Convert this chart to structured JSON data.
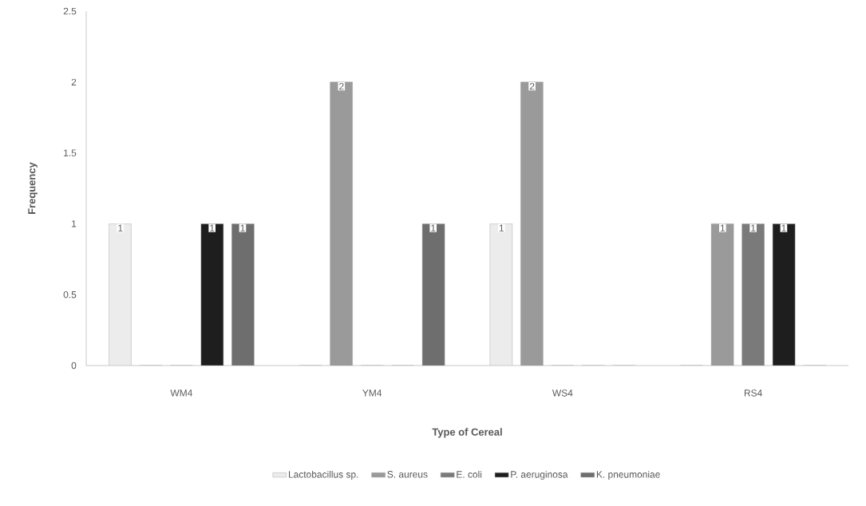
{
  "chart_data": {
    "type": "bar",
    "xlabel": "Type of Cereal",
    "ylabel": "Frequency",
    "categories": [
      "WM4",
      "YM4",
      "WS4",
      "RS4"
    ],
    "series": [
      {
        "name": "Lactobacillus sp.",
        "color": "#ececec",
        "values": [
          1,
          0,
          1,
          0
        ],
        "value_labels": [
          "1",
          null,
          "1",
          null
        ]
      },
      {
        "name": "S. aureus",
        "color": "#9a9a9a",
        "values": [
          0,
          2,
          2,
          1
        ],
        "value_labels": [
          null,
          "2",
          "2",
          "1"
        ]
      },
      {
        "name": "E. coli",
        "color": "#7a7a7a",
        "values": [
          0,
          0,
          0,
          1
        ],
        "value_labels": [
          null,
          null,
          null,
          "1"
        ]
      },
      {
        "name": "P. aeruginosa",
        "color": "#1e1e1e",
        "values": [
          1,
          0,
          0,
          1
        ],
        "value_labels": [
          "1",
          null,
          null,
          "1"
        ]
      },
      {
        "name": "K. pneumoniae",
        "color": "#6e6e6e",
        "values": [
          1,
          1,
          0,
          0
        ],
        "value_labels": [
          "1",
          "1",
          null,
          null
        ]
      }
    ],
    "ylim": [
      0,
      2.5
    ],
    "yticks": [
      0,
      0.5,
      1,
      1.5,
      2,
      2.5
    ],
    "grid": false,
    "legend": "bottom"
  }
}
